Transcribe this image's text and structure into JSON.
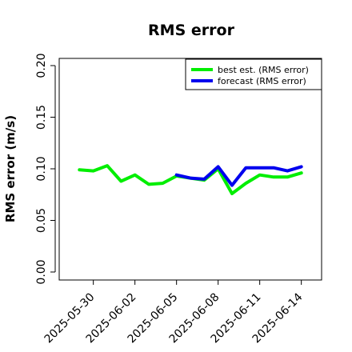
{
  "chart_data": {
    "type": "line",
    "title": "RMS error",
    "xlabel": "",
    "ylabel": "RMS error (m/s)",
    "ylim": [
      0.0,
      0.21
    ],
    "xlim": [
      "2025-05-28",
      "2025-06-15"
    ],
    "y_ticks": [
      "0.00",
      "0.05",
      "0.10",
      "0.15",
      "0.20"
    ],
    "x_ticks": [
      {
        "label": "2025-05-30",
        "date": "2025-05-30",
        "color": "#000000"
      },
      {
        "label": "2025-06-02",
        "date": "2025-06-02",
        "color": "#000000"
      },
      {
        "label": "2025-06-05",
        "date": "2025-06-05",
        "color": "#228b22"
      },
      {
        "label": "2025-06-08",
        "date": "2025-06-08",
        "color": "#000000"
      },
      {
        "label": "2025-06-11",
        "date": "2025-06-11",
        "color": "#000000"
      },
      {
        "label": "2025-06-14",
        "date": "2025-06-14",
        "color": "#000000"
      }
    ],
    "grid": false,
    "legend_position": "top-right",
    "series": [
      {
        "name": "best est. (RMS error)",
        "color": "#00ee00",
        "x": [
          "2025-05-29",
          "2025-05-30",
          "2025-05-31",
          "2025-06-01",
          "2025-06-02",
          "2025-06-03",
          "2025-06-04",
          "2025-06-05",
          "2025-06-06",
          "2025-06-07",
          "2025-06-08",
          "2025-06-09",
          "2025-06-10",
          "2025-06-11",
          "2025-06-12",
          "2025-06-13",
          "2025-06-14"
        ],
        "y": [
          0.099,
          0.098,
          0.103,
          0.088,
          0.094,
          0.085,
          0.086,
          0.093,
          0.091,
          0.089,
          0.1,
          0.076,
          0.086,
          0.094,
          0.092,
          0.092,
          0.096
        ]
      },
      {
        "name": "forecast (RMS error)",
        "color": "#0000ee",
        "x": [
          "2025-06-05",
          "2025-06-06",
          "2025-06-07",
          "2025-06-08",
          "2025-06-09",
          "2025-06-10",
          "2025-06-11",
          "2025-06-12",
          "2025-06-13",
          "2025-06-14"
        ],
        "y": [
          0.094,
          0.091,
          0.09,
          0.102,
          0.084,
          0.101,
          0.101,
          0.101,
          0.098,
          0.102
        ]
      }
    ]
  }
}
